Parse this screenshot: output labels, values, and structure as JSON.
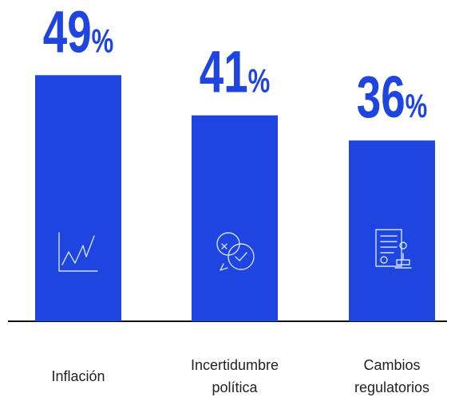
{
  "chart_data": {
    "type": "bar",
    "categories": [
      "Inflación",
      "Incertidumbre política",
      "Cambios regulatorios"
    ],
    "values": [
      49,
      41,
      36
    ],
    "value_labels": [
      "49%",
      "41%",
      "36%"
    ],
    "color": "#1f45e0"
  }
}
